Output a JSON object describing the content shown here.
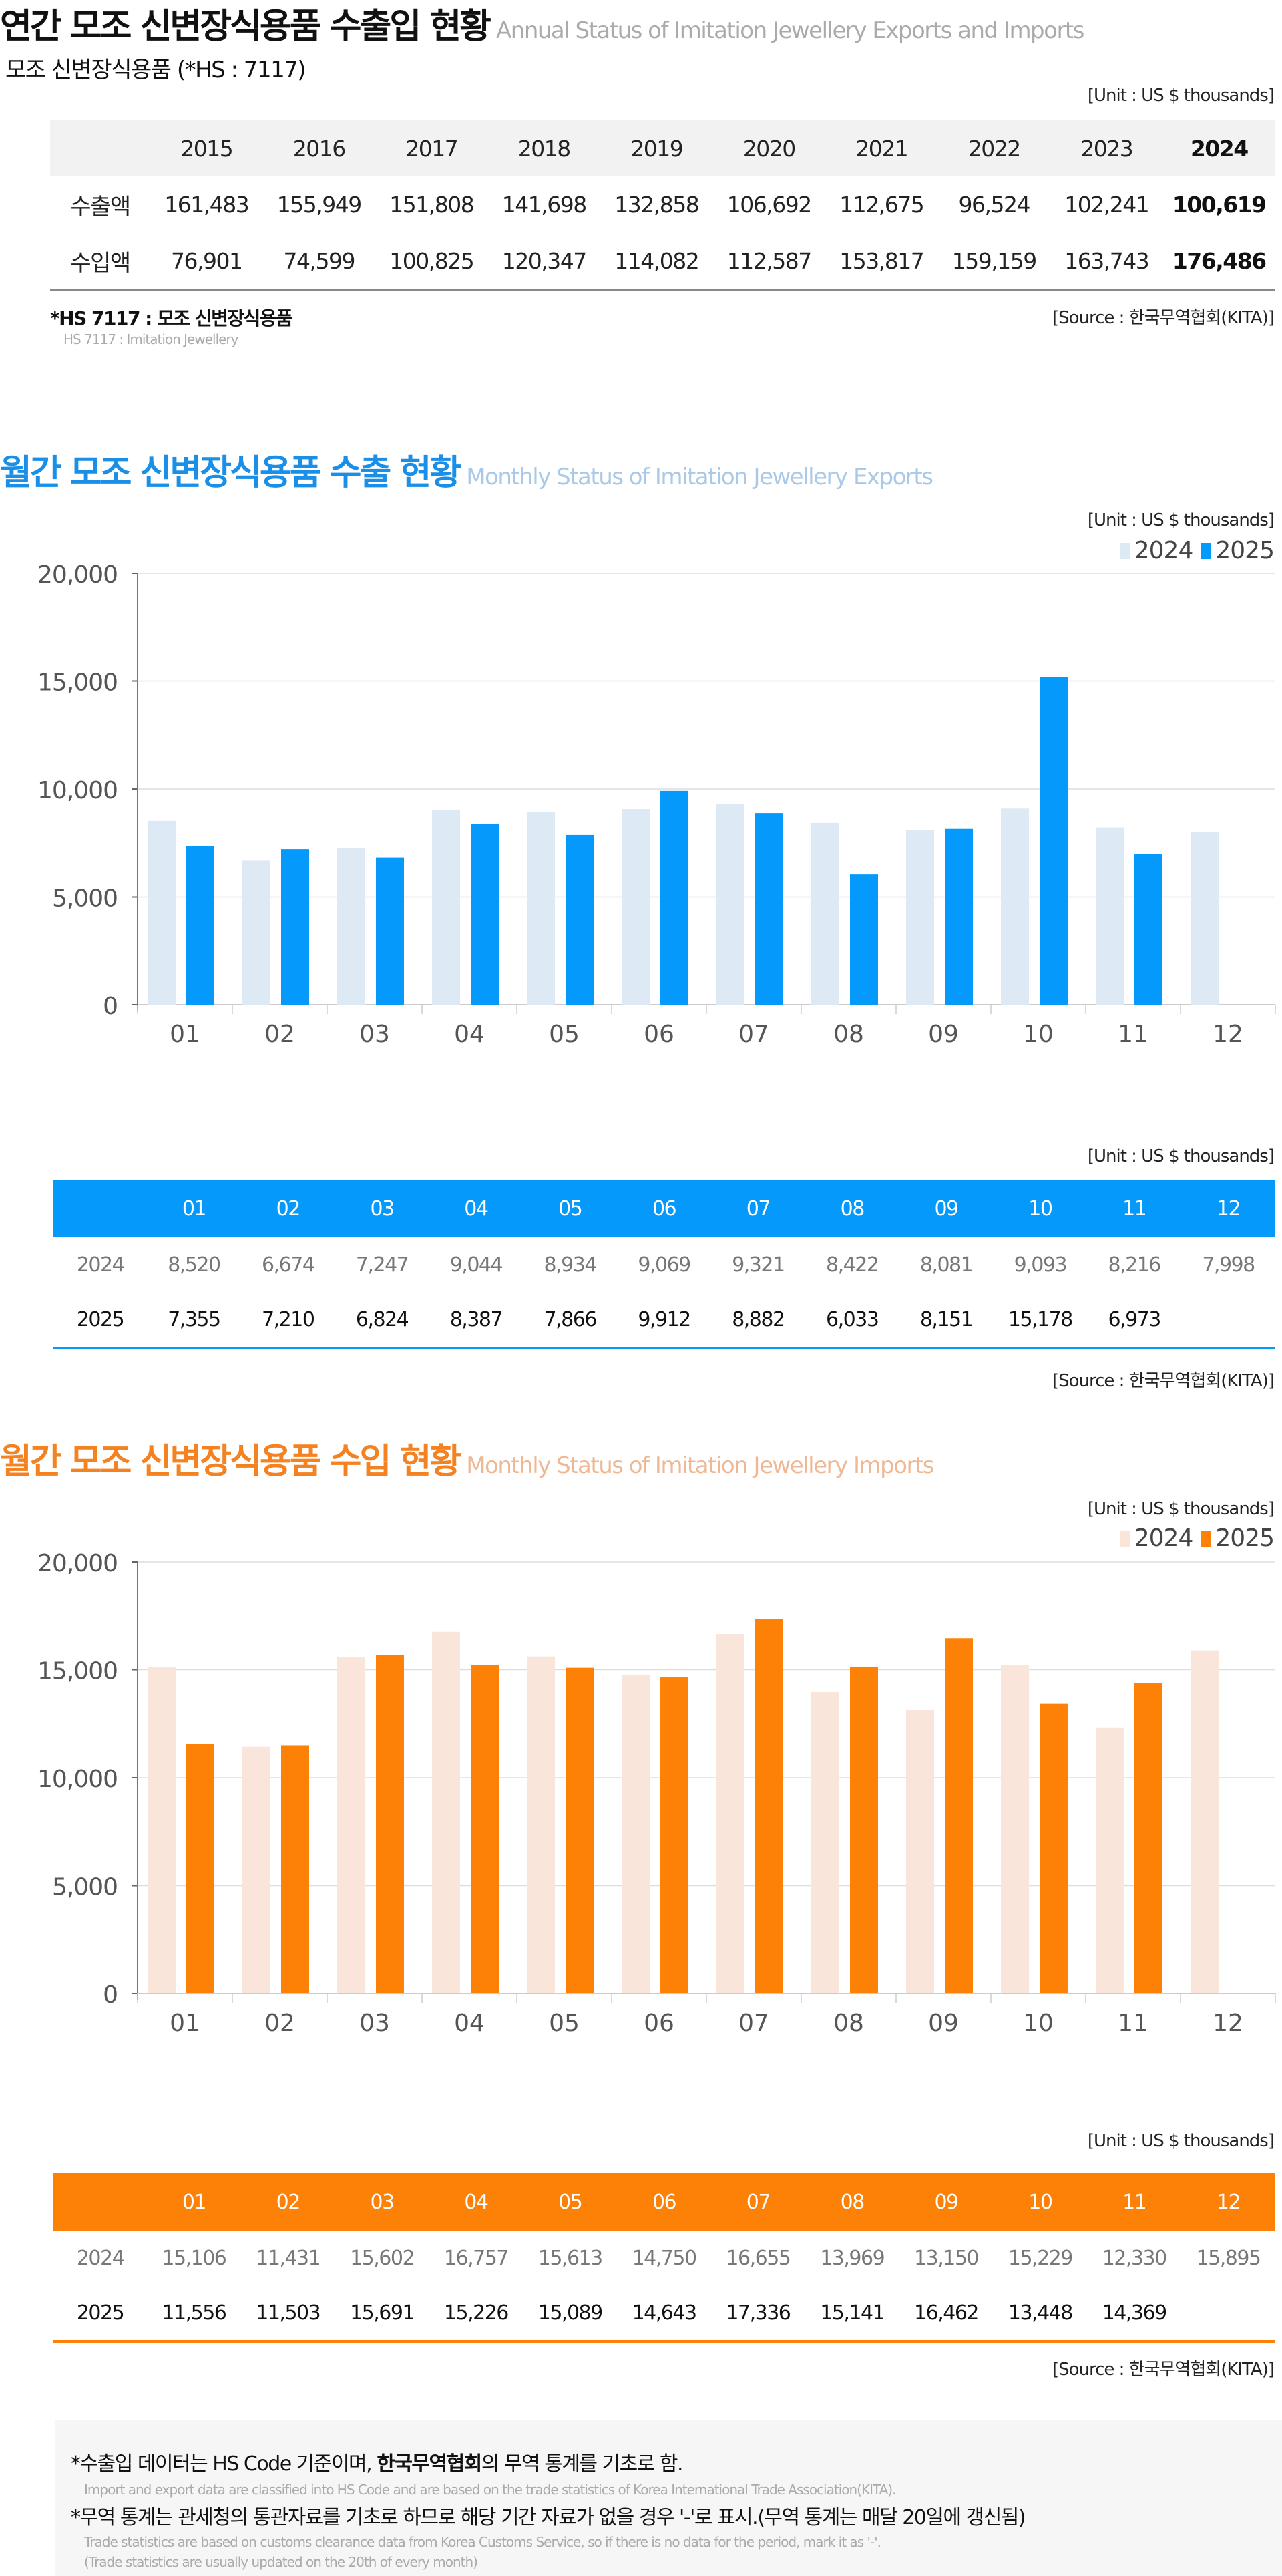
{
  "header": {
    "title_ko": "연간 모조 신변장식용품 수출입 현황",
    "title_en": "Annual Status of Imitation Jewellery Exports and Imports",
    "subtitle": "모조 신변장식용품 (*HS : 7117)"
  },
  "unit_label": "[Unit : US $ thousands]",
  "source_label": "[Source : 한국무역협회(KITA)]",
  "annual_table": {
    "years": [
      "2015",
      "2016",
      "2017",
      "2018",
      "2019",
      "2020",
      "2021",
      "2022",
      "2023",
      "2024"
    ],
    "rows": [
      {
        "label": "수출액",
        "values": [
          "161,483",
          "155,949",
          "151,808",
          "141,698",
          "132,858",
          "106,692",
          "112,675",
          "96,524",
          "102,241",
          "100,619"
        ]
      },
      {
        "label": "수입액",
        "values": [
          "76,901",
          "74,599",
          "100,825",
          "120,347",
          "114,082",
          "112,587",
          "153,817",
          "159,159",
          "163,743",
          "176,486"
        ]
      }
    ],
    "hs_note": "*HS 7117 : 모조 신변장식용품",
    "hs_note_en": "HS 7117 : Imitation Jewellery"
  },
  "exports": {
    "title_ko": "월간 모조 신변장식용품 수출 현황",
    "title_en": "Monthly Status of Imitation Jewellery Exports",
    "colors": {
      "title": "#1a8fe8",
      "title_en": "#a9c9e6",
      "prev": "#dde9f5",
      "cur": "#0499fa"
    },
    "table": {
      "months": [
        "01",
        "02",
        "03",
        "04",
        "05",
        "06",
        "07",
        "08",
        "09",
        "10",
        "11",
        "12"
      ],
      "rows": [
        {
          "label": "2024",
          "values": [
            "8,520",
            "6,674",
            "7,247",
            "9,044",
            "8,934",
            "9,069",
            "9,321",
            "8,422",
            "8,081",
            "9,093",
            "8,216",
            "7,998"
          ]
        },
        {
          "label": "2025",
          "values": [
            "7,355",
            "7,210",
            "6,824",
            "8,387",
            "7,866",
            "9,912",
            "8,882",
            "6,033",
            "8,151",
            "15,178",
            "6,973",
            ""
          ]
        }
      ]
    }
  },
  "imports": {
    "title_ko": "월간 모조 신변장식용품 수입 현황",
    "title_en": "Monthly Status of Imitation Jewellery Imports",
    "colors": {
      "title": "#f58220",
      "title_en": "#eeb894",
      "prev": "#f9e5da",
      "cur": "#fd8107"
    },
    "table": {
      "months": [
        "01",
        "02",
        "03",
        "04",
        "05",
        "06",
        "07",
        "08",
        "09",
        "10",
        "11",
        "12"
      ],
      "rows": [
        {
          "label": "2024",
          "values": [
            "15,106",
            "11,431",
            "15,602",
            "16,757",
            "15,613",
            "14,750",
            "16,655",
            "13,969",
            "13,150",
            "15,229",
            "12,330",
            "15,895"
          ]
        },
        {
          "label": "2025",
          "values": [
            "11,556",
            "11,503",
            "15,691",
            "15,226",
            "15,089",
            "14,643",
            "17,336",
            "15,141",
            "16,462",
            "13,448",
            "14,369",
            ""
          ]
        }
      ]
    }
  },
  "chart_data": [
    {
      "type": "bar",
      "title": "월간 모조 신변장식용품 수출 현황",
      "categories": [
        "01",
        "02",
        "03",
        "04",
        "05",
        "06",
        "07",
        "08",
        "09",
        "10",
        "11",
        "12"
      ],
      "series": [
        {
          "name": "2024",
          "values": [
            8520,
            6674,
            7247,
            9044,
            8934,
            9069,
            9321,
            8422,
            8081,
            9093,
            8216,
            7998
          ]
        },
        {
          "name": "2025",
          "values": [
            7355,
            7210,
            6824,
            8387,
            7866,
            9912,
            8882,
            6033,
            8151,
            15178,
            6973,
            null
          ]
        }
      ],
      "ylim": [
        0,
        20000
      ],
      "yticks": [
        "0",
        "5,000",
        "10,000",
        "15,000",
        "20,000"
      ],
      "yticks_values": [
        0,
        5000,
        10000,
        15000,
        20000
      ],
      "grid": true,
      "legend": "top-right",
      "xlabel": "",
      "ylabel": ""
    },
    {
      "type": "bar",
      "title": "월간 모조 신변장식용품 수입 현황",
      "categories": [
        "01",
        "02",
        "03",
        "04",
        "05",
        "06",
        "07",
        "08",
        "09",
        "10",
        "11",
        "12"
      ],
      "series": [
        {
          "name": "2024",
          "values": [
            15106,
            11431,
            15602,
            16757,
            15613,
            14750,
            16655,
            13969,
            13150,
            15229,
            12330,
            15895
          ]
        },
        {
          "name": "2025",
          "values": [
            11556,
            11503,
            15691,
            15226,
            15089,
            14643,
            17336,
            15141,
            16462,
            13448,
            14369,
            null
          ]
        }
      ],
      "ylim": [
        0,
        20000
      ],
      "yticks": [
        "0",
        "5,000",
        "10,000",
        "15,000",
        "20,000"
      ],
      "yticks_values": [
        0,
        5000,
        10000,
        15000,
        20000
      ],
      "grid": true,
      "legend": "top-right",
      "xlabel": "",
      "ylabel": ""
    }
  ],
  "notes": {
    "line1_pre": "*수출입 데이터는 HS Code 기준이며, ",
    "line1_bold": "한국무역협회",
    "line1_post": "의 무역 통계를 기초로 함.",
    "line1_en": "Import and export data are classified into HS Code and are based on the trade statistics of Korea International  Trade Association(KITA).",
    "line2": "*무역 통계는 관세청의  통관자료를 기초로 하므로 해당 기간 자료가 없을 경우 '-'로 표시.(무역 통계는 매달 20일에 갱신됨)",
    "line2_en": "Trade statistics are based on customs clearance data from Korea Customs Service, so if there is no data for the period, mark it as '-'.",
    "line3_en": "(Trade statistics are usually updated on the 20th of every month)"
  }
}
